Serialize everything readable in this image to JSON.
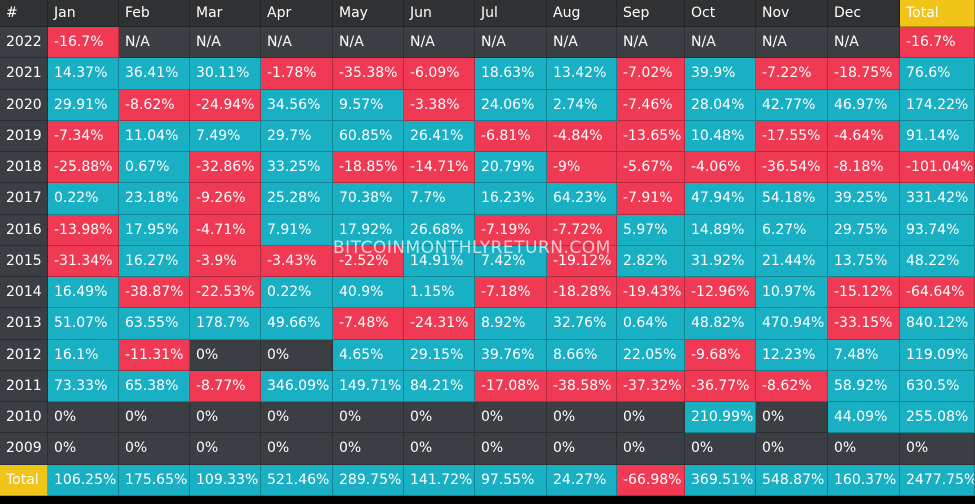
{
  "chart_data": {
    "type": "heatmap",
    "corner_label": "#",
    "columns": [
      "Jan",
      "Feb",
      "Mar",
      "Apr",
      "May",
      "Jun",
      "Jul",
      "Aug",
      "Sep",
      "Oct",
      "Nov",
      "Dec",
      "Total"
    ],
    "rows": [
      {
        "label": "2022",
        "values": [
          "-16.7%",
          "N/A",
          "N/A",
          "N/A",
          "N/A",
          "N/A",
          "N/A",
          "N/A",
          "N/A",
          "N/A",
          "N/A",
          "N/A",
          "-16.7%"
        ]
      },
      {
        "label": "2021",
        "values": [
          "14.37%",
          "36.41%",
          "30.11%",
          "-1.78%",
          "-35.38%",
          "-6.09%",
          "18.63%",
          "13.42%",
          "-7.02%",
          "39.9%",
          "-7.22%",
          "-18.75%",
          "76.6%"
        ]
      },
      {
        "label": "2020",
        "values": [
          "29.91%",
          "-8.62%",
          "-24.94%",
          "34.56%",
          "9.57%",
          "-3.38%",
          "24.06%",
          "2.74%",
          "-7.46%",
          "28.04%",
          "42.77%",
          "46.97%",
          "174.22%"
        ]
      },
      {
        "label": "2019",
        "values": [
          "-7.34%",
          "11.04%",
          "7.49%",
          "29.7%",
          "60.85%",
          "26.41%",
          "-6.81%",
          "-4.84%",
          "-13.65%",
          "10.48%",
          "-17.55%",
          "-4.64%",
          "91.14%"
        ]
      },
      {
        "label": "2018",
        "values": [
          "-25.88%",
          "0.67%",
          "-32.86%",
          "33.25%",
          "-18.85%",
          "-14.71%",
          "20.79%",
          "-9%",
          "-5.67%",
          "-4.06%",
          "-36.54%",
          "-8.18%",
          "-101.04%"
        ]
      },
      {
        "label": "2017",
        "values": [
          "0.22%",
          "23.18%",
          "-9.26%",
          "25.28%",
          "70.38%",
          "7.7%",
          "16.23%",
          "64.23%",
          "-7.91%",
          "47.94%",
          "54.18%",
          "39.25%",
          "331.42%"
        ]
      },
      {
        "label": "2016",
        "values": [
          "-13.98%",
          "17.95%",
          "-4.71%",
          "7.91%",
          "17.92%",
          "26.68%",
          "-7.19%",
          "-7.72%",
          "5.97%",
          "14.89%",
          "6.27%",
          "29.75%",
          "93.74%"
        ]
      },
      {
        "label": "2015",
        "values": [
          "-31.34%",
          "16.27%",
          "-3.9%",
          "-3.43%",
          "-2.52%",
          "14.91%",
          "7.42%",
          "-19.12%",
          "2.82%",
          "31.92%",
          "21.44%",
          "13.75%",
          "48.22%"
        ]
      },
      {
        "label": "2014",
        "values": [
          "16.49%",
          "-38.87%",
          "-22.53%",
          "0.22%",
          "40.9%",
          "1.15%",
          "-7.18%",
          "-18.28%",
          "-19.43%",
          "-12.96%",
          "10.97%",
          "-15.12%",
          "-64.64%"
        ]
      },
      {
        "label": "2013",
        "values": [
          "51.07%",
          "63.55%",
          "178.7%",
          "49.66%",
          "-7.48%",
          "-24.31%",
          "8.92%",
          "32.76%",
          "0.64%",
          "48.82%",
          "470.94%",
          "-33.15%",
          "840.12%"
        ]
      },
      {
        "label": "2012",
        "values": [
          "16.1%",
          "-11.31%",
          "0%",
          "0%",
          "4.65%",
          "29.15%",
          "39.76%",
          "8.66%",
          "22.05%",
          "-9.68%",
          "12.23%",
          "7.48%",
          "119.09%"
        ]
      },
      {
        "label": "2011",
        "values": [
          "73.33%",
          "65.38%",
          "-8.77%",
          "346.09%",
          "149.71%",
          "84.21%",
          "-17.08%",
          "-38.58%",
          "-37.32%",
          "-36.77%",
          "-8.62%",
          "58.92%",
          "630.5%"
        ]
      },
      {
        "label": "2010",
        "values": [
          "0%",
          "0%",
          "0%",
          "0%",
          "0%",
          "0%",
          "0%",
          "0%",
          "0%",
          "210.99%",
          "0%",
          "44.09%",
          "255.08%"
        ]
      },
      {
        "label": "2009",
        "values": [
          "0%",
          "0%",
          "0%",
          "0%",
          "0%",
          "0%",
          "0%",
          "0%",
          "0%",
          "0%",
          "0%",
          "0%",
          "0%"
        ]
      }
    ],
    "total_row": {
      "label": "Total",
      "values": [
        "106.25%",
        "175.65%",
        "109.33%",
        "521.46%",
        "289.75%",
        "141.72%",
        "97.55%",
        "24.27%",
        "-66.98%",
        "369.51%",
        "548.87%",
        "160.37%",
        "2477.75%"
      ]
    },
    "colors": {
      "positive": "#1ab0c4",
      "negative": "#f03a53",
      "neutral": "#3b3f43",
      "header_bg": "#2f3133",
      "highlight": "#f0c419",
      "text": "#ffffff"
    }
  },
  "watermark": "BITCOINMONTHLYRETURN.COM"
}
